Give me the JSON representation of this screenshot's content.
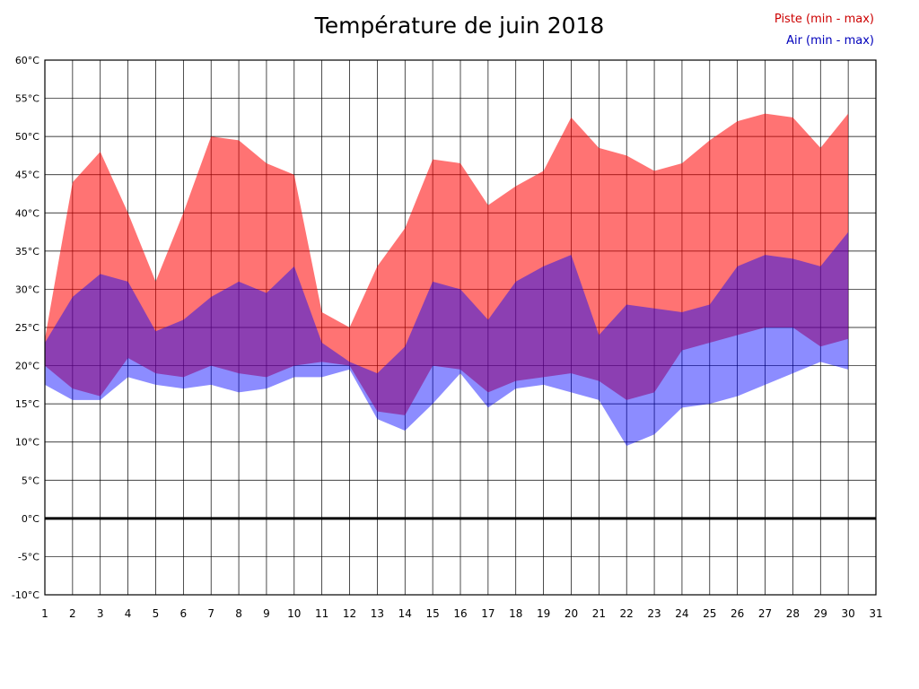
{
  "chart_data": {
    "type": "area",
    "title": "Température de juin 2018",
    "xlabel": "",
    "ylabel": "",
    "legend": {
      "piste": "Piste (min - max)",
      "air": "Air (min - max)",
      "position": "top-right"
    },
    "grid": true,
    "xlim": [
      1,
      31
    ],
    "ylim": [
      -10,
      60
    ],
    "x_ticks": [
      1,
      2,
      3,
      4,
      5,
      6,
      7,
      8,
      9,
      10,
      11,
      12,
      13,
      14,
      15,
      16,
      17,
      18,
      19,
      20,
      21,
      22,
      23,
      24,
      25,
      26,
      27,
      28,
      29,
      30,
      31
    ],
    "y_ticks": [
      60,
      55,
      50,
      45,
      40,
      35,
      30,
      25,
      20,
      15,
      10,
      5,
      0,
      -5,
      -10
    ],
    "y_tick_suffix": "°C",
    "zero_line": 0,
    "days": [
      1,
      2,
      3,
      4,
      5,
      6,
      7,
      8,
      9,
      10,
      11,
      12,
      13,
      14,
      15,
      16,
      17,
      18,
      19,
      20,
      21,
      22,
      23,
      24,
      25,
      26,
      27,
      28,
      29,
      30
    ],
    "series": [
      {
        "name": "Piste (min - max)",
        "fill": "rgba(255,0,0,0.55)",
        "label_color": "#cc0000",
        "min": [
          20,
          17,
          16,
          21,
          19,
          18.5,
          20,
          19,
          18.5,
          20,
          20.5,
          20,
          14,
          13.5,
          20,
          19.5,
          16.5,
          18,
          18.5,
          19,
          18,
          15.5,
          16.5,
          22,
          23,
          24,
          25,
          25,
          22.5,
          23.5
        ],
        "max": [
          23.5,
          44,
          48,
          40,
          31,
          40,
          50,
          49.5,
          46.5,
          45,
          27,
          25,
          33,
          38,
          47,
          46.5,
          41,
          43.5,
          45.5,
          52.5,
          48.5,
          47.5,
          45.5,
          46.5,
          49.5,
          52,
          53,
          52.5,
          48.5,
          53
        ]
      },
      {
        "name": "Air (min - max)",
        "fill": "rgba(0,0,255,0.45)",
        "label_color": "#0000bb",
        "min": [
          17.5,
          15.5,
          15.5,
          18.5,
          17.5,
          17,
          17.5,
          16.5,
          17,
          18.5,
          18.5,
          19.5,
          13,
          11.5,
          15,
          19,
          14.5,
          17,
          17.5,
          16.5,
          15.5,
          9.5,
          11,
          14.5,
          15,
          16,
          17.5,
          19,
          20.5,
          19.5
        ],
        "max": [
          23,
          29,
          32,
          31,
          24.5,
          26,
          29,
          31,
          29.5,
          33,
          23,
          20.5,
          19,
          22.5,
          31,
          30,
          26,
          31,
          33,
          34.5,
          24,
          28,
          27.5,
          27,
          28,
          33,
          34.5,
          34,
          33,
          37.5
        ]
      }
    ],
    "colors": {
      "grid": "#000000",
      "axis_text": "#000000",
      "zero_line": "#000000",
      "background": "#ffffff"
    }
  }
}
